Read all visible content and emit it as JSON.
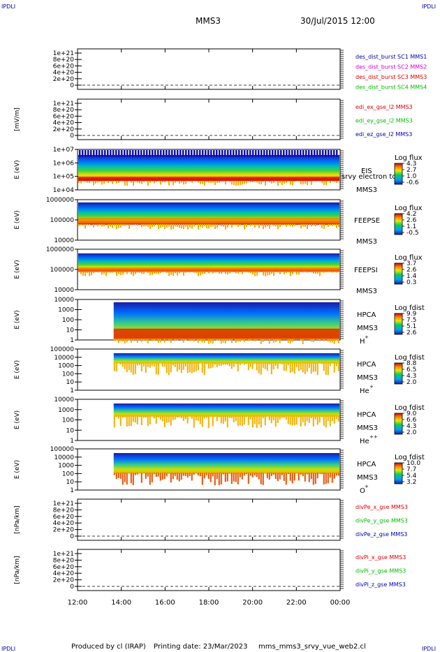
{
  "header": {
    "corner_tl": "IPDLI",
    "corner_tr": "IPDLI",
    "corner_bl": "IPDLI",
    "corner_br": "IPDLI",
    "title": "MMS3",
    "date": "30/Jul/2015 12:00"
  },
  "footer": {
    "produced": "Produced by cl (IRAP)",
    "printing": "Printing date: 23/Mar/2023",
    "file": "mms_mms3_srvy_vue_web2.cl"
  },
  "colors": {
    "axis": "#000000",
    "blue": "#0000aa",
    "magenta": "#cc00cc",
    "red": "#dd0000",
    "green": "#00bb00"
  },
  "chart_data": [
    {
      "type": "line",
      "ylabel": "",
      "ticks": [
        "1e+21",
        "8e+20",
        "6e+20",
        "4e+20",
        "2e+20",
        "0"
      ],
      "x_ticks": [
        "12:00",
        "14:00",
        "16:00",
        "18:00",
        "20:00",
        "22:00",
        "00:00"
      ],
      "series": [
        {
          "name": "des_dist_burst SC1 MMS1",
          "color": "#0000aa",
          "values": []
        },
        {
          "name": "des_dist_burst SC2 MMS2",
          "color": "#cc00cc",
          "values": []
        },
        {
          "name": "des_dist_burst SC3 MMS3",
          "color": "#dd0000",
          "values": []
        },
        {
          "name": "des_dist_burst SC4 MMS4",
          "color": "#00bb00",
          "values": []
        }
      ]
    },
    {
      "type": "line",
      "ylabel": "[mV/m]",
      "ticks": [
        "1e+21",
        "8e+20",
        "6e+20",
        "4e+20",
        "2e+20",
        "0"
      ],
      "series": [
        {
          "name": "edi_ex_gse_l2 MMS3",
          "color": "#dd0000",
          "values": []
        },
        {
          "name": "edi_ey_gse_l2 MMS3",
          "color": "#00bb00",
          "values": []
        },
        {
          "name": "edi_ez_gse_l2 MMS3",
          "color": "#0000aa",
          "values": []
        }
      ]
    },
    {
      "type": "heatmap",
      "ylabel": "E (eV)",
      "ticks": [
        "1e+07",
        "1e+06",
        "1e+05",
        "1e+04"
      ],
      "labels": [
        "EIS",
        "srvy electron to",
        "MMS3"
      ],
      "colorbar_title": "Log flux",
      "colorbar_ticks": [
        "4.3",
        "2.7",
        "1.0",
        "-0.6"
      ]
    },
    {
      "type": "heatmap",
      "ylabel": "E (eV)",
      "ticks": [
        "1000000",
        "100000",
        "10000"
      ],
      "labels": [
        "FEEPSE",
        "MMS3"
      ],
      "colorbar_title": "Log flux",
      "colorbar_ticks": [
        "4.2",
        "2.6",
        "1.1",
        "-0.5"
      ]
    },
    {
      "type": "heatmap",
      "ylabel": "E (eV)",
      "ticks": [
        "1000000",
        "100000",
        "10000"
      ],
      "labels": [
        "FEEPSI",
        "MMS3"
      ],
      "colorbar_title": "Log flux",
      "colorbar_ticks": [
        "3.7",
        "2.6",
        "1.4",
        "0.3"
      ]
    },
    {
      "type": "heatmap",
      "ylabel": "E (eV)",
      "ticks": [
        "10000",
        "1000",
        "100",
        "10",
        "1"
      ],
      "labels": [
        "HPCA",
        "MMS3"
      ],
      "species": "H",
      "charge": "+",
      "colorbar_title": "Log fdist",
      "colorbar_ticks": [
        "9.9",
        "7.5",
        "5.1",
        "2.6"
      ]
    },
    {
      "type": "heatmap",
      "ylabel": "E (eV)",
      "ticks": [
        "100000",
        "10000",
        "1000",
        "100",
        "10",
        "1"
      ],
      "labels": [
        "HPCA",
        "MMS3"
      ],
      "species": "He",
      "charge": "+",
      "colorbar_title": "Log fdist",
      "colorbar_ticks": [
        "8.8",
        "6.5",
        "4.3",
        "2.0"
      ]
    },
    {
      "type": "heatmap",
      "ylabel": "E (eV)",
      "ticks": [
        "10000",
        "1000",
        "100",
        "10",
        "1"
      ],
      "labels": [
        "HPCA",
        "MMS3"
      ],
      "species": "He",
      "charge": "++",
      "colorbar_title": "Log fdist",
      "colorbar_ticks": [
        "9.0",
        "6.6",
        "4.3",
        "2.0"
      ]
    },
    {
      "type": "heatmap",
      "ylabel": "E (eV)",
      "ticks": [
        "100000",
        "10000",
        "1000",
        "100",
        "10",
        "1"
      ],
      "labels": [
        "HPCA",
        "MMS3"
      ],
      "species": "O",
      "charge": "+",
      "colorbar_title": "Log fdist",
      "colorbar_ticks": [
        "10.0",
        "7.7",
        "5.4",
        "3.2"
      ]
    },
    {
      "type": "line",
      "ylabel": "[nPa/km]",
      "ticks": [
        "1e+21",
        "8e+20",
        "6e+20",
        "4e+20",
        "2e+20",
        "0"
      ],
      "series": [
        {
          "name": "divPe_x_gse MMS3",
          "color": "#dd0000",
          "values": []
        },
        {
          "name": "divPe_y_gse MMS3",
          "color": "#00bb00",
          "values": []
        },
        {
          "name": "divPe_z_gse MMS3",
          "color": "#0000aa",
          "values": []
        }
      ]
    },
    {
      "type": "line",
      "ylabel": "[nPa/km]",
      "ticks": [
        "1e+21",
        "8e+20",
        "6e+20",
        "4e+20",
        "2e+20",
        "0"
      ],
      "series": [
        {
          "name": "divPi_x_gse MMS3",
          "color": "#dd0000",
          "values": []
        },
        {
          "name": "divPi_y_gse MMS3",
          "color": "#00bb00",
          "values": []
        },
        {
          "name": "divPi_z_gse MMS3",
          "color": "#0000aa",
          "values": []
        }
      ]
    }
  ]
}
